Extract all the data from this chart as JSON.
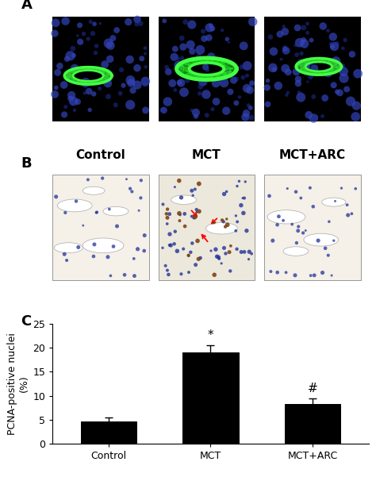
{
  "panel_A_label": "A",
  "panel_B_label": "B",
  "panel_C_label": "C",
  "col_labels": [
    "Control",
    "MCT",
    "MCT+ARC"
  ],
  "bar_values": [
    4.6,
    19.0,
    8.3
  ],
  "bar_errors": [
    0.8,
    1.5,
    1.2
  ],
  "bar_color": "#000000",
  "bar_width": 0.55,
  "ylim": [
    0,
    25
  ],
  "yticks": [
    0,
    5,
    10,
    15,
    20,
    25
  ],
  "ylabel": "PCNA-positive nuclei\n(%)",
  "xlabel_labels": [
    "Control",
    "MCT",
    "MCT+ARC"
  ],
  "sig_labels": [
    null,
    "*",
    "#"
  ],
  "sig_vals": [
    null,
    19.0,
    8.3
  ],
  "sig_errors": [
    null,
    1.5,
    1.2
  ],
  "panel_label_fontsize": 13,
  "col_label_fontsize": 11,
  "axis_fontsize": 9,
  "tick_fontsize": 9,
  "figsize": [
    4.74,
    6.01
  ],
  "dpi": 100
}
